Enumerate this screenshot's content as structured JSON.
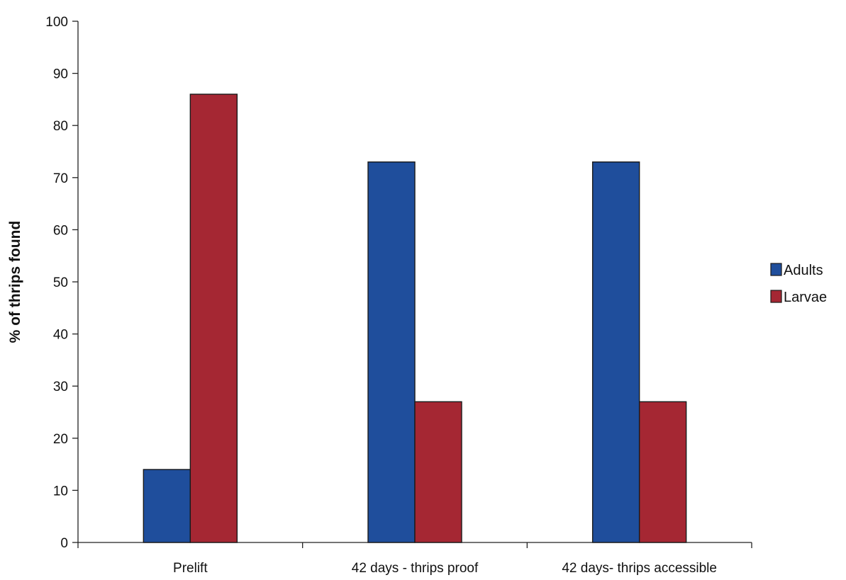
{
  "chart_data": {
    "type": "bar",
    "categories": [
      "Prelift",
      "42 days - thrips proof",
      "42 days- thrips accessible"
    ],
    "series": [
      {
        "name": "Adults",
        "values": [
          14,
          73,
          73
        ],
        "color": "#1f4e9c"
      },
      {
        "name": "Larvae",
        "values": [
          86,
          27,
          27
        ],
        "color": "#a52733"
      }
    ],
    "title": "",
    "xlabel": "",
    "ylabel": "% of thrips found",
    "ylim": [
      0,
      100
    ],
    "yticks": [
      0,
      10,
      20,
      30,
      40,
      50,
      60,
      70,
      80,
      90,
      100
    ],
    "grid": false,
    "legend_position": "right"
  }
}
